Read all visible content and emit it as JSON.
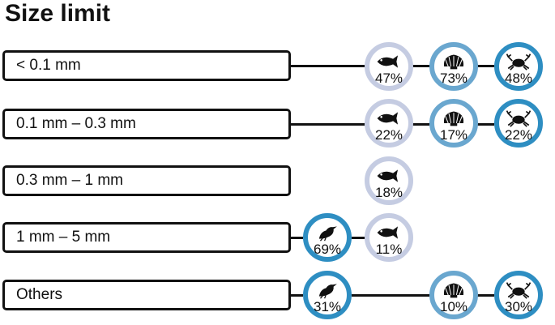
{
  "title": "Size limit",
  "colors": {
    "fish_ring": "#c5cce2",
    "shell_ring": "#6aa7cf",
    "crab_ring": "#2e8ec2",
    "bird_ring": "#2e8ec2"
  },
  "rows": [
    {
      "label": "< 0.1 mm",
      "fish": "47%",
      "shell": "73%",
      "crab": "48%"
    },
    {
      "label": "0.1 mm – 0.3 mm",
      "fish": "22%",
      "shell": "17%",
      "crab": "22%"
    },
    {
      "label": "0.3 mm – 1 mm",
      "fish": "18%"
    },
    {
      "label": "1 mm – 5 mm",
      "bird": "69%",
      "fish": "11%"
    },
    {
      "label": "Others",
      "bird": "31%",
      "shell": "10%",
      "crab": "30%"
    }
  ],
  "icons": {
    "fish": "fish-icon",
    "shell": "shell-icon",
    "crab": "crab-icon",
    "bird": "bird-icon"
  }
}
